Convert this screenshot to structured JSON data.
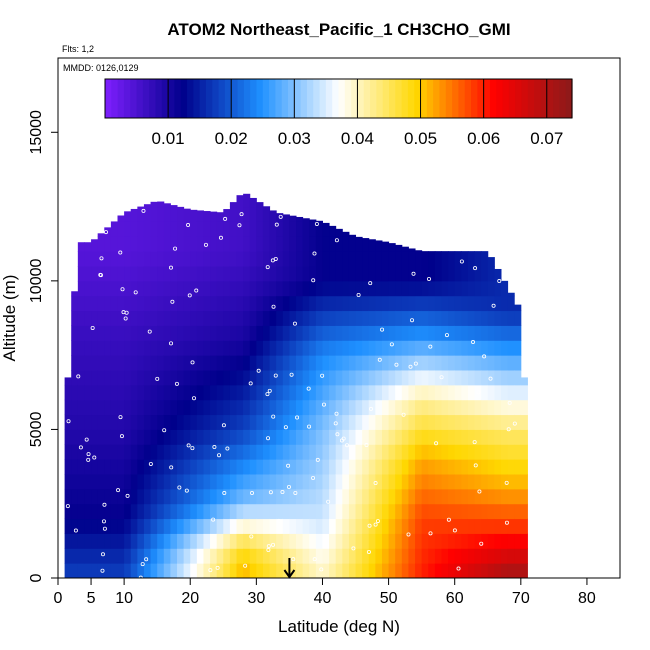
{
  "chart_data": {
    "type": "heatmap",
    "title": "ATOM2 Northeast_Pacific_1 CH3CHO_GMI",
    "annotations": [
      "Flts: 1,2",
      "MMDD: 0126,0129"
    ],
    "xlabel": "Latitude (deg N)",
    "ylabel": "Altitude (m)",
    "xlim": [
      0,
      85
    ],
    "ylim": [
      0,
      17500
    ],
    "x_ticks": [
      0,
      5,
      10,
      20,
      30,
      40,
      50,
      60,
      70,
      80
    ],
    "y_ticks": [
      0,
      5000,
      10000,
      15000
    ],
    "colorbar": {
      "range": [
        0,
        0.074
      ],
      "ticks": [
        "0.01",
        "0.02",
        "0.03",
        "0.04",
        "0.05",
        "0.06",
        "0.07"
      ],
      "colors": [
        "#7f1fff",
        "#00008b",
        "#1e90ff",
        "#ffffff",
        "#ffd700",
        "#ff0000",
        "#8b1a1a"
      ]
    },
    "latitude_columns": [
      {
        "lat": 1,
        "top": 5500
      },
      {
        "lat": 2,
        "top": 8000
      },
      {
        "lat": 3,
        "top": 11300
      },
      {
        "lat": 5,
        "top": 11300
      },
      {
        "lat": 10,
        "top": 12300
      },
      {
        "lat": 15,
        "top": 12700
      },
      {
        "lat": 20,
        "top": 12400
      },
      {
        "lat": 25,
        "top": 12300
      },
      {
        "lat": 28,
        "top": 13000
      },
      {
        "lat": 33,
        "top": 12300
      },
      {
        "lat": 40,
        "top": 12000
      },
      {
        "lat": 45,
        "top": 11500
      },
      {
        "lat": 50,
        "top": 11300
      },
      {
        "lat": 55,
        "top": 11000
      },
      {
        "lat": 60,
        "top": 11000
      },
      {
        "lat": 65,
        "top": 11000
      },
      {
        "lat": 70,
        "top": 9000
      },
      {
        "lat": 71,
        "top": 4500
      }
    ],
    "altitude_profile_examples": [
      {
        "lat": 10,
        "altitude": [
          0,
          2000,
          5000,
          8000,
          11000
        ],
        "value": [
          0.018,
          0.012,
          0.009,
          0.007,
          0.004
        ]
      },
      {
        "lat": 28,
        "altitude": [
          0,
          1000,
          2500,
          5000,
          8000,
          11000
        ],
        "value": [
          0.052,
          0.048,
          0.03,
          0.018,
          0.01,
          0.006
        ]
      },
      {
        "lat": 40,
        "altitude": [
          0,
          2000,
          5000,
          7500,
          10000
        ],
        "value": [
          0.04,
          0.034,
          0.03,
          0.024,
          0.012
        ]
      },
      {
        "lat": 55,
        "altitude": [
          0,
          2000,
          4000,
          6000,
          8000,
          10000
        ],
        "value": [
          0.06,
          0.058,
          0.052,
          0.042,
          0.026,
          0.012
        ]
      },
      {
        "lat": 68,
        "altitude": [
          0,
          1500,
          3000,
          5000,
          7000,
          9000
        ],
        "value": [
          0.072,
          0.06,
          0.052,
          0.044,
          0.03,
          0.016
        ]
      }
    ],
    "marker": {
      "lat": 35,
      "altitude": 0,
      "symbol": "down-arrow"
    }
  }
}
